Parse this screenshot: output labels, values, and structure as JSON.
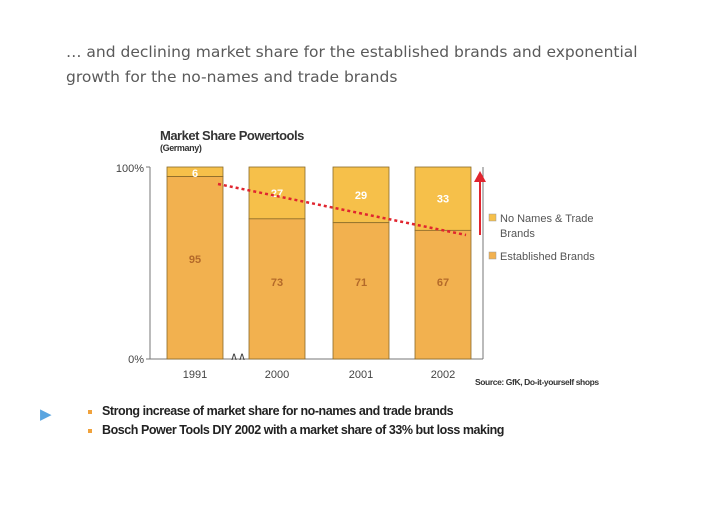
{
  "headline": {
    "line1": "… and declining market share for the established brands and exponential",
    "line2": "growth for the no-names and trade brands"
  },
  "chart_data": {
    "type": "bar",
    "stacked": true,
    "title": "Market Share Powertools",
    "subtitle": "(Germany)",
    "categories": [
      "1991",
      "2000",
      "2001",
      "2002"
    ],
    "series": [
      {
        "name": "Established Brands",
        "values": [
          95,
          73,
          71,
          67
        ],
        "color": "#f2b14f"
      },
      {
        "name": "No Names & Trade Brands",
        "values": [
          6,
          27,
          29,
          33
        ],
        "color": "#f6c04a"
      }
    ],
    "y_tick_labels": [
      "100%",
      "0%"
    ],
    "ylim": [
      0,
      100
    ],
    "axis_break_symbol": "∧∧",
    "trend": "declining share of established brands (dotted red line)",
    "legend_position": "right",
    "source": "Source: GfK, Do-it-yourself shops"
  },
  "bullets": {
    "arrow_icon": "triangle-right-icon",
    "items": [
      "Strong increase of market share for no-names  and trade brands",
      "Bosch Power Tools DIY 2002 with a market share of 33% but loss making"
    ]
  },
  "colors": {
    "bar_fill": "#f2b14f",
    "bar_fill_top": "#f6c04a",
    "bar_stroke": "#8a6a2a",
    "trend": "#e0252f",
    "label_light": "#ffffff",
    "label_dark": "#b46a2a"
  }
}
